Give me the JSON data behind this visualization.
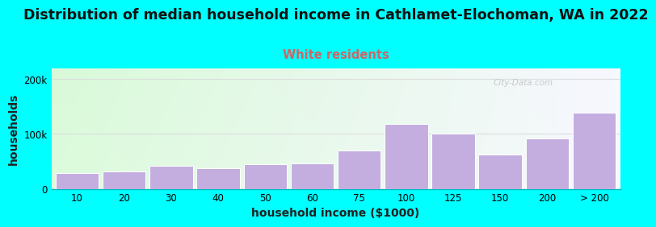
{
  "title": "Distribution of median household income in Cathlamet-Elochoman, WA in 2022",
  "subtitle": "White residents",
  "xlabel": "household income ($1000)",
  "ylabel": "households",
  "background_color": "#00FFFF",
  "bar_color": "#c4aee0",
  "bar_edge_color": "#ffffff",
  "categories": [
    "10",
    "20",
    "30",
    "40",
    "50",
    "60",
    "75",
    "100",
    "125",
    "150",
    "200",
    "> 200"
  ],
  "values": [
    28000,
    32000,
    42000,
    38000,
    45000,
    46000,
    70000,
    118000,
    100000,
    62000,
    92000,
    138000
  ],
  "ylim": [
    0,
    220000
  ],
  "yticks": [
    0,
    100000,
    200000
  ],
  "ytick_labels": [
    "0",
    "100k",
    "200k"
  ],
  "title_fontsize": 12.5,
  "subtitle_fontsize": 10.5,
  "subtitle_color": "#cc6666",
  "axis_label_fontsize": 10,
  "tick_fontsize": 8.5,
  "watermark": "City-Data.com",
  "grid_color": "#dddddd",
  "plot_grad_left": "#d8f0d8",
  "plot_grad_right": "#f5f5ff"
}
